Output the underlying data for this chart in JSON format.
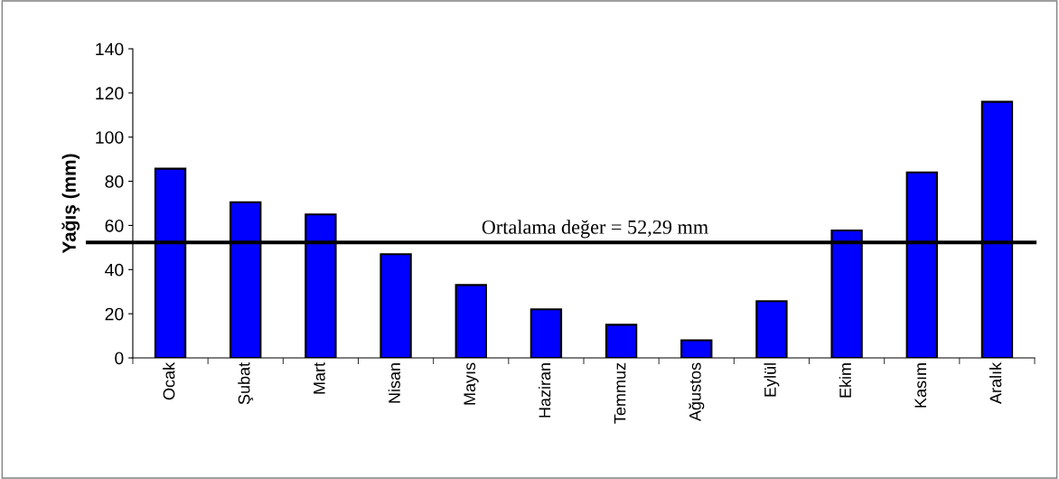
{
  "chart_data": {
    "type": "bar",
    "ylabel": "Yağış (mm)",
    "categories": [
      "Ocak",
      "Şubat",
      "Mart",
      "Nisan",
      "Mayıs",
      "Haziran",
      "Temmuz",
      "Ağustos",
      "Eylül",
      "Ekim",
      "Kasım",
      "Aralık"
    ],
    "values": [
      85.7,
      70.5,
      65,
      47,
      33,
      22,
      15,
      8,
      25.7,
      57.7,
      84,
      116
    ],
    "color": "#0000ff",
    "ylim": [
      0,
      140
    ],
    "yticks": [
      0,
      20,
      40,
      60,
      80,
      100,
      120,
      140
    ],
    "grid": false,
    "legend": false,
    "ref_lines": [
      {
        "axis": "y",
        "value": 52.29,
        "label": "Ortalama değer = 52,29 mm",
        "color": "#000000",
        "line_style": "solid"
      }
    ]
  }
}
